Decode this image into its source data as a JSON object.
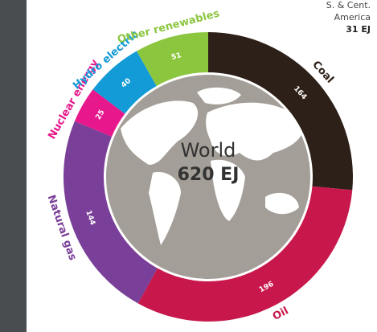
{
  "chart_data": {
    "type": "donut",
    "center_title": "World",
    "center_text": "620 EJ",
    "categories": [
      "Coal",
      "Oil",
      "Natural gas",
      "Nuclear energy",
      "Hydro electric",
      "Other renewables"
    ],
    "values": [
      164,
      196,
      144,
      25,
      40,
      51
    ],
    "colors": [
      "#2d2018",
      "#c8174b",
      "#7a3f98",
      "#e6188c",
      "#129bd6",
      "#8cc63f"
    ],
    "corner_note": {
      "lines": [
        "S. & Cent.",
        "America"
      ],
      "text": "31 EJ"
    }
  }
}
